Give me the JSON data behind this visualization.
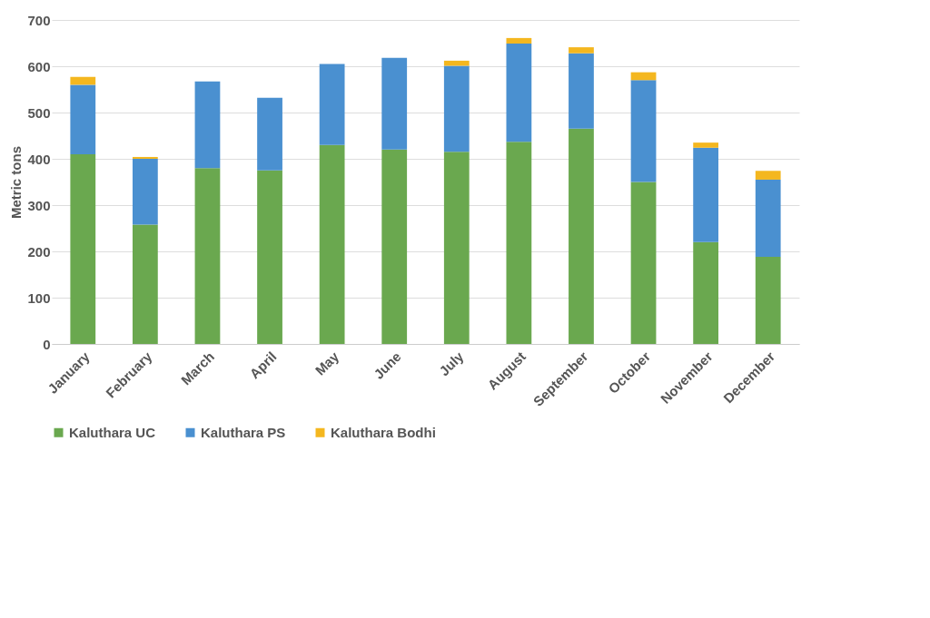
{
  "chart_data": {
    "type": "bar",
    "stacked": true,
    "ylabel": "Metric tons",
    "categories": [
      "January",
      "February",
      "March",
      "April",
      "May",
      "June",
      "July",
      "August",
      "September",
      "October",
      "November",
      "December"
    ],
    "series": [
      {
        "name": "Kaluthara UC",
        "color": "#6aa84f",
        "values": [
          410,
          258,
          380,
          375,
          430,
          420,
          415,
          437,
          465,
          350,
          220,
          188
        ]
      },
      {
        "name": "Kaluthara PS",
        "color": "#4a90d0",
        "values": [
          150,
          142,
          187,
          157,
          175,
          198,
          186,
          212,
          163,
          220,
          204,
          167
        ]
      },
      {
        "name": "Kaluthara Bodhi",
        "color": "#f4b71f",
        "values": [
          17,
          4,
          null,
          null,
          null,
          null,
          11,
          12,
          13,
          17,
          11,
          19
        ]
      }
    ],
    "ylim": [
      0,
      700
    ],
    "yticks": [
      0,
      100,
      200,
      300,
      400,
      500,
      600,
      700
    ],
    "grid": "y",
    "legend": "bottom"
  }
}
